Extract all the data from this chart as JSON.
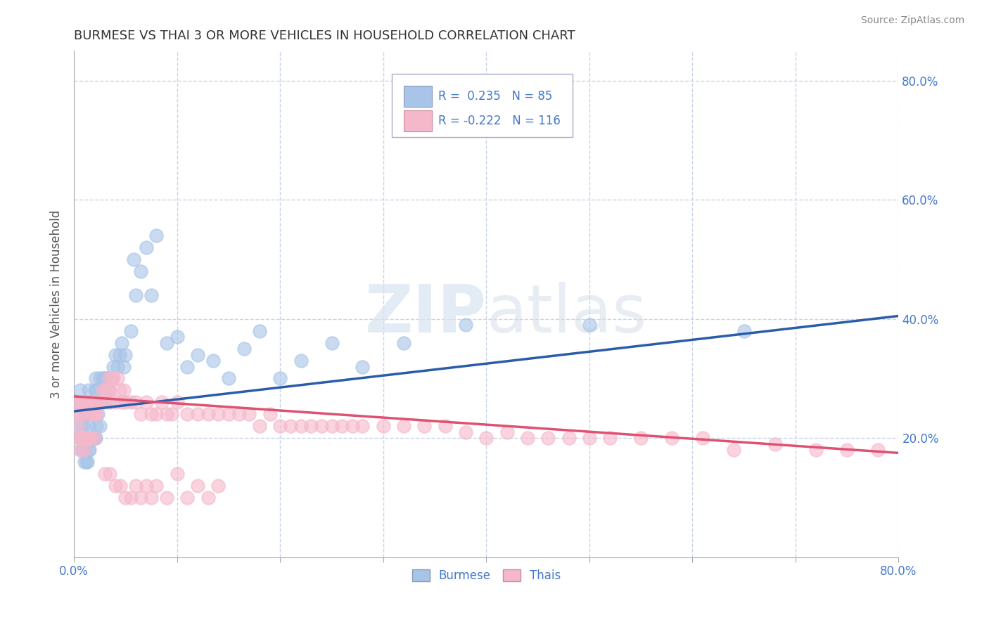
{
  "title": "BURMESE VS THAI 3 OR MORE VEHICLES IN HOUSEHOLD CORRELATION CHART",
  "source_text": "Source: ZipAtlas.com",
  "ylabel": "3 or more Vehicles in Household",
  "xlim": [
    0.0,
    0.8
  ],
  "ylim": [
    0.0,
    0.85
  ],
  "xticks": [
    0.0,
    0.1,
    0.2,
    0.3,
    0.4,
    0.5,
    0.6,
    0.7,
    0.8
  ],
  "ytick_positions": [
    0.2,
    0.4,
    0.6,
    0.8
  ],
  "ytick_labels": [
    "20.0%",
    "40.0%",
    "60.0%",
    "80.0%"
  ],
  "burmese_color": "#a8c4e8",
  "thais_color": "#f5b8cb",
  "burmese_line_color": "#2a5caa",
  "thais_line_color": "#e05070",
  "legend_r_burmese": "0.235",
  "legend_n_burmese": "85",
  "legend_r_thais": "-0.222",
  "legend_n_thais": "116",
  "background_color": "#ffffff",
  "grid_color": "#c8d4e8",
  "title_color": "#333333",
  "title_fontsize": 13,
  "axis_label_color": "#555555",
  "tick_label_color": "#4477cc",
  "burmese_trend": {
    "x_start": 0.0,
    "x_end": 0.8,
    "y_start": 0.245,
    "y_end": 0.405
  },
  "thais_trend": {
    "x_start": 0.0,
    "x_end": 0.8,
    "y_start": 0.27,
    "y_end": 0.175
  },
  "burmese_x": [
    0.003,
    0.005,
    0.006,
    0.006,
    0.007,
    0.007,
    0.008,
    0.008,
    0.009,
    0.009,
    0.01,
    0.01,
    0.01,
    0.011,
    0.011,
    0.012,
    0.012,
    0.012,
    0.013,
    0.013,
    0.013,
    0.014,
    0.014,
    0.014,
    0.015,
    0.015,
    0.016,
    0.016,
    0.017,
    0.017,
    0.018,
    0.018,
    0.019,
    0.019,
    0.02,
    0.02,
    0.021,
    0.021,
    0.022,
    0.022,
    0.023,
    0.024,
    0.025,
    0.025,
    0.026,
    0.027,
    0.028,
    0.029,
    0.03,
    0.031,
    0.032,
    0.033,
    0.034,
    0.035,
    0.036,
    0.038,
    0.04,
    0.042,
    0.044,
    0.046,
    0.048,
    0.05,
    0.055,
    0.058,
    0.06,
    0.065,
    0.07,
    0.075,
    0.08,
    0.09,
    0.1,
    0.11,
    0.12,
    0.135,
    0.15,
    0.165,
    0.18,
    0.2,
    0.22,
    0.25,
    0.28,
    0.32,
    0.38,
    0.5,
    0.65
  ],
  "burmese_y": [
    0.24,
    0.2,
    0.22,
    0.28,
    0.18,
    0.26,
    0.2,
    0.26,
    0.18,
    0.22,
    0.16,
    0.2,
    0.24,
    0.18,
    0.24,
    0.16,
    0.2,
    0.26,
    0.16,
    0.2,
    0.26,
    0.18,
    0.22,
    0.28,
    0.18,
    0.24,
    0.2,
    0.26,
    0.2,
    0.26,
    0.2,
    0.26,
    0.2,
    0.26,
    0.2,
    0.28,
    0.2,
    0.3,
    0.22,
    0.28,
    0.24,
    0.26,
    0.22,
    0.3,
    0.26,
    0.28,
    0.3,
    0.28,
    0.3,
    0.28,
    0.3,
    0.28,
    0.3,
    0.26,
    0.3,
    0.32,
    0.34,
    0.32,
    0.34,
    0.36,
    0.32,
    0.34,
    0.38,
    0.5,
    0.44,
    0.48,
    0.52,
    0.44,
    0.54,
    0.36,
    0.37,
    0.32,
    0.34,
    0.33,
    0.3,
    0.35,
    0.38,
    0.3,
    0.33,
    0.36,
    0.32,
    0.36,
    0.39,
    0.39,
    0.38
  ],
  "thais_x": [
    0.003,
    0.004,
    0.005,
    0.005,
    0.006,
    0.006,
    0.007,
    0.007,
    0.008,
    0.008,
    0.009,
    0.009,
    0.01,
    0.01,
    0.011,
    0.011,
    0.012,
    0.012,
    0.013,
    0.013,
    0.014,
    0.014,
    0.015,
    0.015,
    0.016,
    0.017,
    0.018,
    0.019,
    0.02,
    0.02,
    0.021,
    0.022,
    0.023,
    0.024,
    0.025,
    0.026,
    0.027,
    0.028,
    0.03,
    0.031,
    0.032,
    0.034,
    0.035,
    0.037,
    0.038,
    0.04,
    0.042,
    0.044,
    0.046,
    0.048,
    0.05,
    0.055,
    0.06,
    0.065,
    0.07,
    0.075,
    0.08,
    0.085,
    0.09,
    0.095,
    0.1,
    0.11,
    0.12,
    0.13,
    0.14,
    0.15,
    0.16,
    0.17,
    0.18,
    0.19,
    0.2,
    0.21,
    0.22,
    0.23,
    0.24,
    0.25,
    0.26,
    0.27,
    0.28,
    0.3,
    0.32,
    0.34,
    0.36,
    0.38,
    0.4,
    0.42,
    0.44,
    0.46,
    0.48,
    0.5,
    0.52,
    0.55,
    0.58,
    0.61,
    0.64,
    0.68,
    0.72,
    0.75,
    0.78,
    0.03,
    0.035,
    0.04,
    0.045,
    0.05,
    0.055,
    0.06,
    0.065,
    0.07,
    0.075,
    0.08,
    0.09,
    0.1,
    0.11,
    0.12,
    0.13,
    0.14
  ],
  "thais_y": [
    0.24,
    0.22,
    0.2,
    0.26,
    0.18,
    0.24,
    0.2,
    0.26,
    0.2,
    0.26,
    0.2,
    0.26,
    0.18,
    0.24,
    0.2,
    0.26,
    0.2,
    0.26,
    0.2,
    0.26,
    0.2,
    0.26,
    0.2,
    0.26,
    0.2,
    0.24,
    0.24,
    0.26,
    0.2,
    0.26,
    0.24,
    0.24,
    0.26,
    0.26,
    0.26,
    0.26,
    0.26,
    0.28,
    0.26,
    0.28,
    0.28,
    0.3,
    0.28,
    0.3,
    0.3,
    0.26,
    0.3,
    0.28,
    0.26,
    0.28,
    0.26,
    0.26,
    0.26,
    0.24,
    0.26,
    0.24,
    0.24,
    0.26,
    0.24,
    0.24,
    0.26,
    0.24,
    0.24,
    0.24,
    0.24,
    0.24,
    0.24,
    0.24,
    0.22,
    0.24,
    0.22,
    0.22,
    0.22,
    0.22,
    0.22,
    0.22,
    0.22,
    0.22,
    0.22,
    0.22,
    0.22,
    0.22,
    0.22,
    0.21,
    0.2,
    0.21,
    0.2,
    0.2,
    0.2,
    0.2,
    0.2,
    0.2,
    0.2,
    0.2,
    0.18,
    0.19,
    0.18,
    0.18,
    0.18,
    0.14,
    0.14,
    0.12,
    0.12,
    0.1,
    0.1,
    0.12,
    0.1,
    0.12,
    0.1,
    0.12,
    0.1,
    0.14,
    0.1,
    0.12,
    0.1,
    0.12
  ]
}
